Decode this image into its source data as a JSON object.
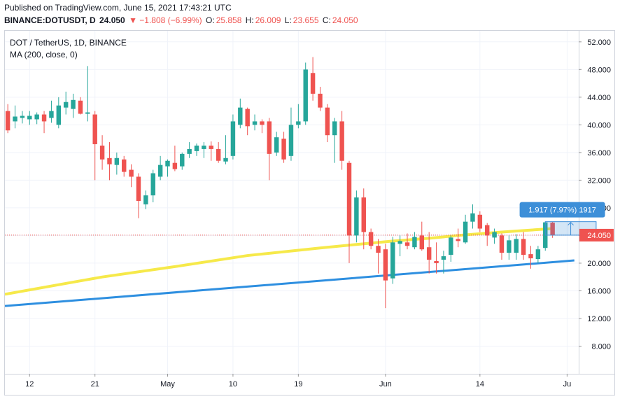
{
  "header": {
    "published": "Published on TradingView.com, June 15, 2021 17:43:21 UTC",
    "symbol": "BINANCE:DOTUSDT, D",
    "last": "24.050",
    "change": "▼ −1.808 (−6.99%)",
    "o_label": "O:",
    "o_value": "25.858",
    "h_label": "H:",
    "h_value": "26.009",
    "l_label": "L:",
    "l_value": "23.655",
    "c_label": "C:",
    "c_value": "24.050"
  },
  "legend": {
    "title": "DOT / TetherUS, 1D, BINANCE",
    "ma": "MA (200, close, 0)"
  },
  "colors": {
    "up": "#26a69a",
    "down": "#ef5350",
    "ma": "#f6e94a",
    "trendline": "#2e8fe0",
    "measure": "#3d8fd8",
    "price_label": "#ef5350"
  },
  "chart_data": {
    "type": "candlestick",
    "y_axis_ticks": [
      "8.000",
      "12.000",
      "16.000",
      "20.000",
      "24.000",
      "28.000",
      "32.000",
      "36.000",
      "40.000",
      "44.000",
      "48.000",
      "52.000"
    ],
    "ylim": [
      4.0,
      53.6
    ],
    "x_axis_labels": [
      "12",
      "21",
      "May",
      "10",
      "19",
      "Jun",
      "14",
      "Ju"
    ],
    "x_axis_label_days": [
      0,
      9,
      19,
      28,
      37,
      49,
      62,
      74
    ],
    "x_range_days": [
      -3.4,
      75.6
    ],
    "last_price": "24.050",
    "candles": [
      {
        "d": -3,
        "o": 42.0,
        "h": 43.0,
        "l": 38.8,
        "c": 39.2
      },
      {
        "d": -2,
        "o": 40.5,
        "h": 42.8,
        "l": 39.5,
        "c": 41.2
      },
      {
        "d": -1,
        "o": 41.0,
        "h": 42.0,
        "l": 40.2,
        "c": 41.3
      },
      {
        "d": 0,
        "o": 40.8,
        "h": 42.0,
        "l": 40.0,
        "c": 41.3
      },
      {
        "d": 1,
        "o": 40.8,
        "h": 41.8,
        "l": 40.1,
        "c": 41.5
      },
      {
        "d": 2,
        "o": 41.5,
        "h": 42.0,
        "l": 38.8,
        "c": 40.5
      },
      {
        "d": 3,
        "o": 41.0,
        "h": 43.5,
        "l": 40.3,
        "c": 42.0
      },
      {
        "d": 4,
        "o": 40.0,
        "h": 44.0,
        "l": 39.5,
        "c": 42.8
      },
      {
        "d": 5,
        "o": 42.5,
        "h": 44.8,
        "l": 41.5,
        "c": 43.3
      },
      {
        "d": 6,
        "o": 42.3,
        "h": 44.5,
        "l": 41.0,
        "c": 43.6
      },
      {
        "d": 7,
        "o": 43.5,
        "h": 44.0,
        "l": 41.5,
        "c": 41.6
      },
      {
        "d": 8,
        "o": 41.6,
        "h": 48.5,
        "l": 40.5,
        "c": 41.8
      },
      {
        "d": 9,
        "o": 41.5,
        "h": 42.0,
        "l": 32.0,
        "c": 37.2
      },
      {
        "d": 10,
        "o": 37.0,
        "h": 38.5,
        "l": 33.5,
        "c": 35.0
      },
      {
        "d": 11,
        "o": 35.2,
        "h": 37.5,
        "l": 32.0,
        "c": 34.3
      },
      {
        "d": 12,
        "o": 34.2,
        "h": 36.0,
        "l": 32.8,
        "c": 35.2
      },
      {
        "d": 13,
        "o": 35.0,
        "h": 35.5,
        "l": 32.5,
        "c": 33.2
      },
      {
        "d": 14,
        "o": 33.5,
        "h": 34.3,
        "l": 31.0,
        "c": 32.5
      },
      {
        "d": 15,
        "o": 32.5,
        "h": 33.0,
        "l": 26.5,
        "c": 29.0
      },
      {
        "d": 16,
        "o": 28.5,
        "h": 30.5,
        "l": 27.8,
        "c": 29.8
      },
      {
        "d": 17,
        "o": 29.8,
        "h": 33.5,
        "l": 28.8,
        "c": 33.0
      },
      {
        "d": 18,
        "o": 32.5,
        "h": 35.5,
        "l": 32.0,
        "c": 34.2
      },
      {
        "d": 19,
        "o": 34.0,
        "h": 35.0,
        "l": 32.5,
        "c": 34.8
      },
      {
        "d": 20,
        "o": 34.5,
        "h": 37.0,
        "l": 33.3,
        "c": 33.6
      },
      {
        "d": 21,
        "o": 34.0,
        "h": 36.0,
        "l": 33.5,
        "c": 35.8
      },
      {
        "d": 22,
        "o": 35.8,
        "h": 37.5,
        "l": 35.2,
        "c": 36.5
      },
      {
        "d": 23,
        "o": 36.2,
        "h": 37.3,
        "l": 35.5,
        "c": 37.0
      },
      {
        "d": 24,
        "o": 36.5,
        "h": 37.5,
        "l": 35.2,
        "c": 37.0
      },
      {
        "d": 25,
        "o": 37.0,
        "h": 37.6,
        "l": 34.8,
        "c": 36.5
      },
      {
        "d": 26,
        "o": 36.5,
        "h": 37.5,
        "l": 34.5,
        "c": 34.8
      },
      {
        "d": 27,
        "o": 34.7,
        "h": 38.5,
        "l": 34.3,
        "c": 35.2
      },
      {
        "d": 28,
        "o": 35.5,
        "h": 41.5,
        "l": 35.0,
        "c": 40.5
      },
      {
        "d": 29,
        "o": 40.0,
        "h": 43.8,
        "l": 39.5,
        "c": 42.5
      },
      {
        "d": 30,
        "o": 42.3,
        "h": 42.5,
        "l": 38.5,
        "c": 39.8
      },
      {
        "d": 31,
        "o": 40.0,
        "h": 41.5,
        "l": 39.2,
        "c": 40.5
      },
      {
        "d": 32,
        "o": 40.5,
        "h": 40.8,
        "l": 38.8,
        "c": 40.0
      },
      {
        "d": 33,
        "o": 40.5,
        "h": 41.0,
        "l": 32.0,
        "c": 35.8
      },
      {
        "d": 34,
        "o": 36.0,
        "h": 39.0,
        "l": 35.5,
        "c": 38.2
      },
      {
        "d": 35,
        "o": 38.0,
        "h": 39.0,
        "l": 34.5,
        "c": 35.0
      },
      {
        "d": 36,
        "o": 35.5,
        "h": 42.5,
        "l": 34.8,
        "c": 40.0
      },
      {
        "d": 37,
        "o": 40.0,
        "h": 43.0,
        "l": 39.5,
        "c": 40.5
      },
      {
        "d": 38,
        "o": 40.5,
        "h": 49.0,
        "l": 40.0,
        "c": 48.0
      },
      {
        "d": 39,
        "o": 47.5,
        "h": 49.8,
        "l": 43.5,
        "c": 44.5
      },
      {
        "d": 40,
        "o": 44.5,
        "h": 45.5,
        "l": 42.0,
        "c": 42.5
      },
      {
        "d": 41,
        "o": 42.5,
        "h": 43.0,
        "l": 37.5,
        "c": 38.5
      },
      {
        "d": 42,
        "o": 38.5,
        "h": 41.0,
        "l": 34.5,
        "c": 40.5
      },
      {
        "d": 43,
        "o": 40.5,
        "h": 42.0,
        "l": 33.5,
        "c": 34.8
      },
      {
        "d": 44,
        "o": 34.5,
        "h": 34.8,
        "l": 20.0,
        "c": 24.0
      },
      {
        "d": 45,
        "o": 24.0,
        "h": 30.5,
        "l": 23.0,
        "c": 29.5
      },
      {
        "d": 46,
        "o": 29.5,
        "h": 30.8,
        "l": 22.0,
        "c": 24.5
      },
      {
        "d": 47,
        "o": 24.5,
        "h": 25.0,
        "l": 22.0,
        "c": 22.5
      },
      {
        "d": 48,
        "o": 22.5,
        "h": 23.5,
        "l": 18.5,
        "c": 21.5
      },
      {
        "d": 49,
        "o": 22.0,
        "h": 22.8,
        "l": 13.5,
        "c": 17.5
      },
      {
        "d": 50,
        "o": 17.8,
        "h": 23.8,
        "l": 17.0,
        "c": 23.0
      },
      {
        "d": 51,
        "o": 22.8,
        "h": 24.0,
        "l": 21.0,
        "c": 23.2
      },
      {
        "d": 52,
        "o": 23.0,
        "h": 24.3,
        "l": 22.0,
        "c": 22.5
      },
      {
        "d": 53,
        "o": 22.3,
        "h": 24.5,
        "l": 22.0,
        "c": 23.8
      },
      {
        "d": 54,
        "o": 24.0,
        "h": 26.0,
        "l": 21.8,
        "c": 22.0
      },
      {
        "d": 55,
        "o": 22.3,
        "h": 24.5,
        "l": 18.5,
        "c": 20.5
      },
      {
        "d": 56,
        "o": 20.3,
        "h": 23.0,
        "l": 18.5,
        "c": 20.0
      },
      {
        "d": 57,
        "o": 20.5,
        "h": 21.8,
        "l": 18.5,
        "c": 21.0
      },
      {
        "d": 58,
        "o": 21.2,
        "h": 24.0,
        "l": 20.2,
        "c": 23.7
      },
      {
        "d": 59,
        "o": 23.5,
        "h": 25.0,
        "l": 22.3,
        "c": 23.2
      },
      {
        "d": 60,
        "o": 23.0,
        "h": 27.0,
        "l": 22.8,
        "c": 26.0
      },
      {
        "d": 61,
        "o": 26.0,
        "h": 28.5,
        "l": 25.0,
        "c": 27.2
      },
      {
        "d": 62,
        "o": 27.0,
        "h": 27.5,
        "l": 24.5,
        "c": 25.0
      },
      {
        "d": 63,
        "o": 25.5,
        "h": 25.8,
        "l": 22.5,
        "c": 24.0
      },
      {
        "d": 64,
        "o": 23.7,
        "h": 25.0,
        "l": 22.8,
        "c": 24.5
      },
      {
        "d": 65,
        "o": 24.0,
        "h": 24.3,
        "l": 20.5,
        "c": 21.5
      },
      {
        "d": 66,
        "o": 21.5,
        "h": 24.0,
        "l": 20.5,
        "c": 23.3
      },
      {
        "d": 67,
        "o": 21.5,
        "h": 24.2,
        "l": 20.5,
        "c": 23.5
      },
      {
        "d": 68,
        "o": 23.5,
        "h": 24.5,
        "l": 20.5,
        "c": 21.2
      },
      {
        "d": 69,
        "o": 21.3,
        "h": 22.5,
        "l": 19.2,
        "c": 20.7
      },
      {
        "d": 70,
        "o": 20.6,
        "h": 22.5,
        "l": 20.0,
        "c": 22.0
      },
      {
        "d": 71,
        "o": 22.2,
        "h": 26.0,
        "l": 21.8,
        "c": 25.9
      },
      {
        "d": 72,
        "o": 25.86,
        "h": 26.01,
        "l": 23.66,
        "c": 24.05
      }
    ],
    "ma200": [
      {
        "d": -3.4,
        "v": 15.5
      },
      {
        "d": 10,
        "v": 18.0
      },
      {
        "d": 20,
        "v": 19.5
      },
      {
        "d": 30,
        "v": 21.1
      },
      {
        "d": 40,
        "v": 22.2
      },
      {
        "d": 45,
        "v": 22.7
      },
      {
        "d": 50,
        "v": 23.2
      },
      {
        "d": 55,
        "v": 23.6
      },
      {
        "d": 60,
        "v": 24.1
      },
      {
        "d": 65,
        "v": 24.5
      },
      {
        "d": 72,
        "v": 25.0
      }
    ],
    "trendline": [
      {
        "d": -3.4,
        "v": 13.8
      },
      {
        "d": 75,
        "v": 20.4
      }
    ],
    "measure": {
      "d_start": 71,
      "d_end": 78,
      "p_low": 24.05,
      "p_high": 26.0,
      "label": "1.917 (7.97%) 1917"
    }
  }
}
